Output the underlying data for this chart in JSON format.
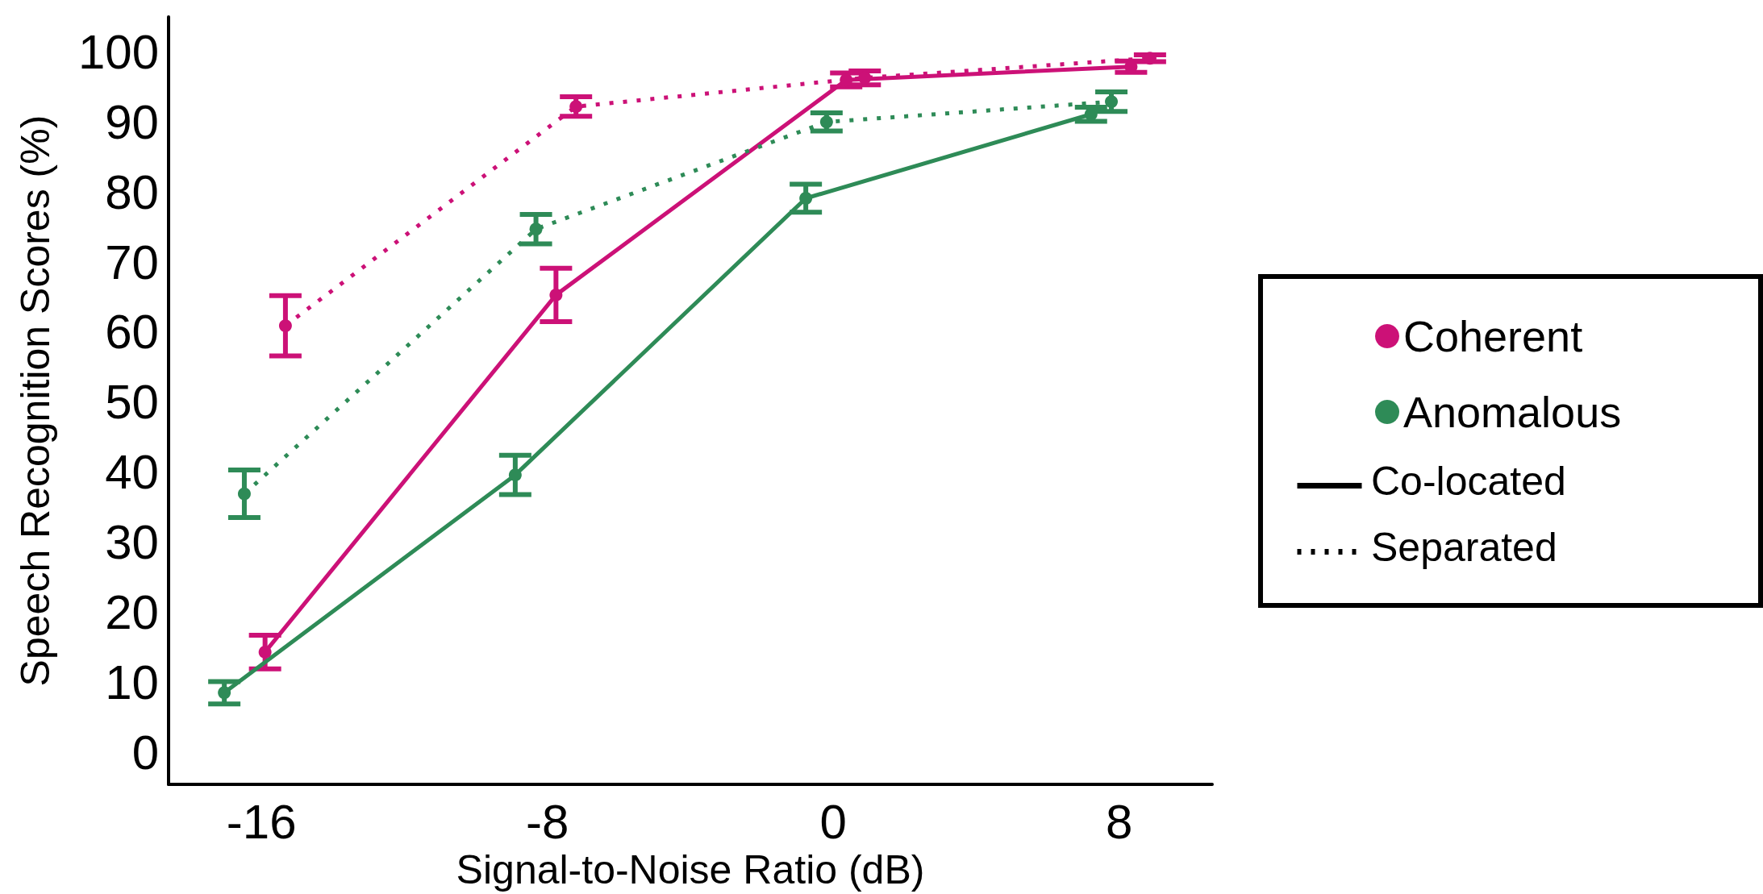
{
  "chart_data": {
    "type": "line",
    "xlabel": "Signal-to-Noise Ratio (dB)",
    "ylabel": "Speech Recognition Scores (%)",
    "xlim": [
      -18.6,
      10.6
    ],
    "xticks": [
      -16,
      -8,
      0,
      8
    ],
    "ylim": [
      -4.6,
      105
    ],
    "yticks": [
      0,
      10,
      20,
      30,
      40,
      50,
      60,
      70,
      80,
      90,
      100
    ],
    "grid": false,
    "legend": "right",
    "marker": "circle",
    "annotations": [
      "Co-located",
      "Separated"
    ],
    "series": [
      {
        "name": "Coherent",
        "color": "#cc1177",
        "line_style": "solid",
        "x": [
          -15.9,
          -7.76,
          0.36,
          8.33
        ],
        "values": [
          14.3,
          65.3,
          96.0,
          97.9
        ],
        "errors": [
          2.4,
          3.8,
          1.0,
          0.8
        ]
      },
      {
        "name": "Anomalous",
        "color": "#2e8b57",
        "line_style": "solid",
        "x": [
          -17.04,
          -8.9,
          -0.77,
          7.21
        ],
        "values": [
          8.5,
          39.6,
          79.1,
          91.1
        ],
        "errors": [
          1.6,
          2.8,
          2.0,
          1.0
        ]
      },
      {
        "color": "#cc1177",
        "line_style": "dotted",
        "x": [
          -15.33,
          -7.2,
          0.88,
          8.86
        ],
        "values": [
          60.9,
          92.2,
          96.3,
          99.1
        ],
        "errors": [
          4.3,
          1.4,
          1.0,
          0.5
        ]
      },
      {
        "color": "#2e8b57",
        "line_style": "dotted",
        "x": [
          -16.48,
          -8.32,
          -0.19,
          7.78
        ],
        "values": [
          36.9,
          74.7,
          90.0,
          92.9
        ],
        "errors": [
          3.4,
          2.1,
          1.3,
          1.4
        ]
      }
    ]
  }
}
